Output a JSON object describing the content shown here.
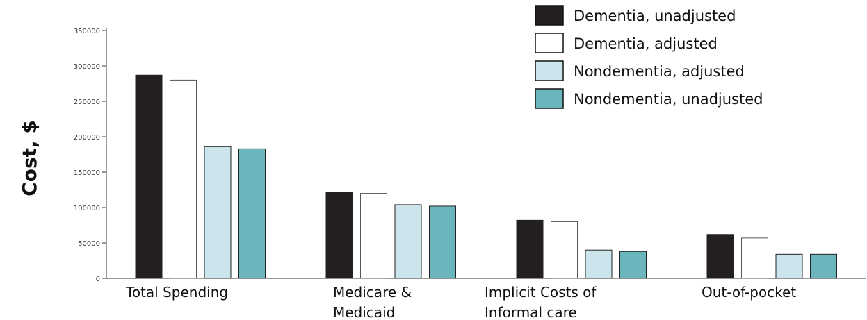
{
  "chart_data": {
    "type": "bar",
    "ylabel": "Cost, $",
    "xlabel": "",
    "ylim": [
      0,
      350000
    ],
    "yticks": [
      {
        "value": 0,
        "label": "0"
      },
      {
        "value": 50000,
        "label": "50000"
      },
      {
        "value": 100000,
        "label": "100000"
      },
      {
        "value": 150000,
        "label": "150000"
      },
      {
        "value": 200000,
        "label": "200000"
      },
      {
        "value": 250000,
        "label": "250000"
      },
      {
        "value": 300000,
        "label": "300000"
      },
      {
        "value": 350000,
        "label": "350000"
      }
    ],
    "categories": [
      [
        "Total Spending"
      ],
      [
        "Medicare &",
        "Medicaid"
      ],
      [
        "Implicit Costs of",
        "Informal care"
      ],
      [
        "Out-of-pocket"
      ]
    ],
    "series": [
      {
        "name": "Dementia, unadjusted",
        "color": "#231f20",
        "values": [
          287000,
          122000,
          82000,
          62000
        ]
      },
      {
        "name": "Dementia, adjusted",
        "color": "#ffffff",
        "values": [
          280000,
          120000,
          80000,
          57000
        ]
      },
      {
        "name": "Nondementia, adjusted",
        "color": "#cce5ec",
        "values": [
          186000,
          104000,
          40000,
          34000
        ]
      },
      {
        "name": "Nondementia, unadjusted",
        "color": "#6bb5bd",
        "values": [
          183000,
          102000,
          38000,
          34000
        ]
      }
    ],
    "legend_position": "top-right",
    "grid": false
  }
}
